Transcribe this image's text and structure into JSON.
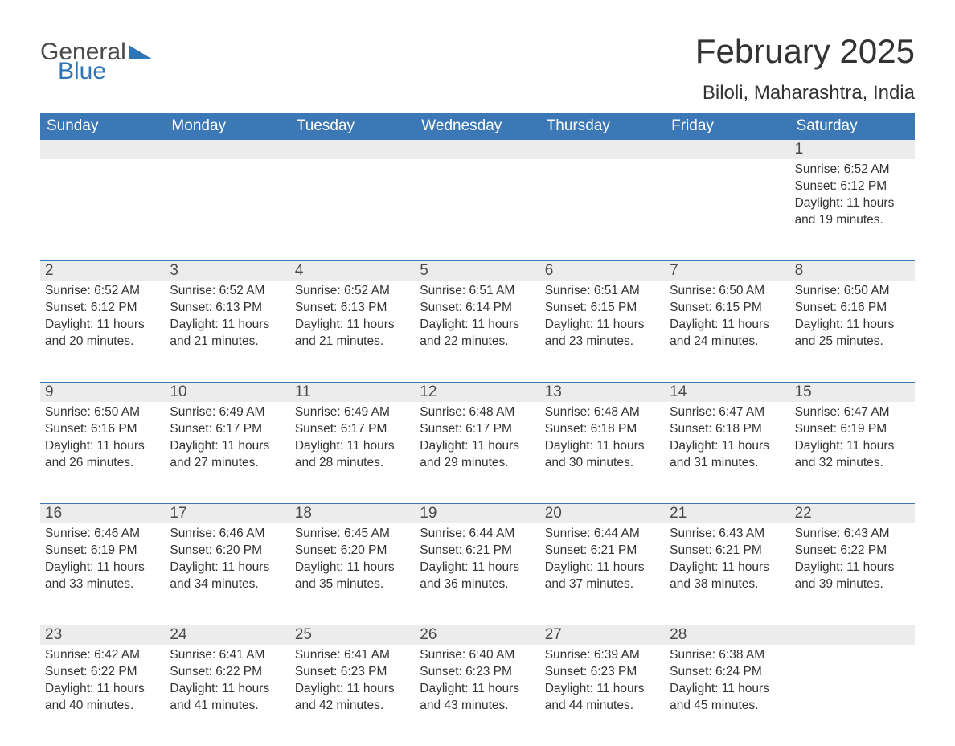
{
  "logo": {
    "text_general": "General",
    "text_blue": "Blue",
    "colors": {
      "general": "#4a4a4a",
      "blue": "#2e75b6"
    }
  },
  "header": {
    "month_title": "February 2025",
    "location": "Biloli, Maharashtra, India"
  },
  "style": {
    "header_row_bg": "#3b78b5",
    "header_row_text": "#ffffff",
    "daynum_bg": "#ececec",
    "week_border": "#3b78b5",
    "body_text": "#333333",
    "page_bg": "#ffffff",
    "weekday_fontsize": 19,
    "daynum_fontsize": 19,
    "body_fontsize": 15.5,
    "title_fontsize": 42,
    "location_fontsize": 24
  },
  "calendar": {
    "type": "table",
    "weekdays": [
      "Sunday",
      "Monday",
      "Tuesday",
      "Wednesday",
      "Thursday",
      "Friday",
      "Saturday"
    ],
    "weeks": [
      [
        null,
        null,
        null,
        null,
        null,
        null,
        {
          "n": "1",
          "sunrise": "Sunrise: 6:52 AM",
          "sunset": "Sunset: 6:12 PM",
          "daylight": "Daylight: 11 hours and 19 minutes."
        }
      ],
      [
        {
          "n": "2",
          "sunrise": "Sunrise: 6:52 AM",
          "sunset": "Sunset: 6:12 PM",
          "daylight": "Daylight: 11 hours and 20 minutes."
        },
        {
          "n": "3",
          "sunrise": "Sunrise: 6:52 AM",
          "sunset": "Sunset: 6:13 PM",
          "daylight": "Daylight: 11 hours and 21 minutes."
        },
        {
          "n": "4",
          "sunrise": "Sunrise: 6:52 AM",
          "sunset": "Sunset: 6:13 PM",
          "daylight": "Daylight: 11 hours and 21 minutes."
        },
        {
          "n": "5",
          "sunrise": "Sunrise: 6:51 AM",
          "sunset": "Sunset: 6:14 PM",
          "daylight": "Daylight: 11 hours and 22 minutes."
        },
        {
          "n": "6",
          "sunrise": "Sunrise: 6:51 AM",
          "sunset": "Sunset: 6:15 PM",
          "daylight": "Daylight: 11 hours and 23 minutes."
        },
        {
          "n": "7",
          "sunrise": "Sunrise: 6:50 AM",
          "sunset": "Sunset: 6:15 PM",
          "daylight": "Daylight: 11 hours and 24 minutes."
        },
        {
          "n": "8",
          "sunrise": "Sunrise: 6:50 AM",
          "sunset": "Sunset: 6:16 PM",
          "daylight": "Daylight: 11 hours and 25 minutes."
        }
      ],
      [
        {
          "n": "9",
          "sunrise": "Sunrise: 6:50 AM",
          "sunset": "Sunset: 6:16 PM",
          "daylight": "Daylight: 11 hours and 26 minutes."
        },
        {
          "n": "10",
          "sunrise": "Sunrise: 6:49 AM",
          "sunset": "Sunset: 6:17 PM",
          "daylight": "Daylight: 11 hours and 27 minutes."
        },
        {
          "n": "11",
          "sunrise": "Sunrise: 6:49 AM",
          "sunset": "Sunset: 6:17 PM",
          "daylight": "Daylight: 11 hours and 28 minutes."
        },
        {
          "n": "12",
          "sunrise": "Sunrise: 6:48 AM",
          "sunset": "Sunset: 6:17 PM",
          "daylight": "Daylight: 11 hours and 29 minutes."
        },
        {
          "n": "13",
          "sunrise": "Sunrise: 6:48 AM",
          "sunset": "Sunset: 6:18 PM",
          "daylight": "Daylight: 11 hours and 30 minutes."
        },
        {
          "n": "14",
          "sunrise": "Sunrise: 6:47 AM",
          "sunset": "Sunset: 6:18 PM",
          "daylight": "Daylight: 11 hours and 31 minutes."
        },
        {
          "n": "15",
          "sunrise": "Sunrise: 6:47 AM",
          "sunset": "Sunset: 6:19 PM",
          "daylight": "Daylight: 11 hours and 32 minutes."
        }
      ],
      [
        {
          "n": "16",
          "sunrise": "Sunrise: 6:46 AM",
          "sunset": "Sunset: 6:19 PM",
          "daylight": "Daylight: 11 hours and 33 minutes."
        },
        {
          "n": "17",
          "sunrise": "Sunrise: 6:46 AM",
          "sunset": "Sunset: 6:20 PM",
          "daylight": "Daylight: 11 hours and 34 minutes."
        },
        {
          "n": "18",
          "sunrise": "Sunrise: 6:45 AM",
          "sunset": "Sunset: 6:20 PM",
          "daylight": "Daylight: 11 hours and 35 minutes."
        },
        {
          "n": "19",
          "sunrise": "Sunrise: 6:44 AM",
          "sunset": "Sunset: 6:21 PM",
          "daylight": "Daylight: 11 hours and 36 minutes."
        },
        {
          "n": "20",
          "sunrise": "Sunrise: 6:44 AM",
          "sunset": "Sunset: 6:21 PM",
          "daylight": "Daylight: 11 hours and 37 minutes."
        },
        {
          "n": "21",
          "sunrise": "Sunrise: 6:43 AM",
          "sunset": "Sunset: 6:21 PM",
          "daylight": "Daylight: 11 hours and 38 minutes."
        },
        {
          "n": "22",
          "sunrise": "Sunrise: 6:43 AM",
          "sunset": "Sunset: 6:22 PM",
          "daylight": "Daylight: 11 hours and 39 minutes."
        }
      ],
      [
        {
          "n": "23",
          "sunrise": "Sunrise: 6:42 AM",
          "sunset": "Sunset: 6:22 PM",
          "daylight": "Daylight: 11 hours and 40 minutes."
        },
        {
          "n": "24",
          "sunrise": "Sunrise: 6:41 AM",
          "sunset": "Sunset: 6:22 PM",
          "daylight": "Daylight: 11 hours and 41 minutes."
        },
        {
          "n": "25",
          "sunrise": "Sunrise: 6:41 AM",
          "sunset": "Sunset: 6:23 PM",
          "daylight": "Daylight: 11 hours and 42 minutes."
        },
        {
          "n": "26",
          "sunrise": "Sunrise: 6:40 AM",
          "sunset": "Sunset: 6:23 PM",
          "daylight": "Daylight: 11 hours and 43 minutes."
        },
        {
          "n": "27",
          "sunrise": "Sunrise: 6:39 AM",
          "sunset": "Sunset: 6:23 PM",
          "daylight": "Daylight: 11 hours and 44 minutes."
        },
        {
          "n": "28",
          "sunrise": "Sunrise: 6:38 AM",
          "sunset": "Sunset: 6:24 PM",
          "daylight": "Daylight: 11 hours and 45 minutes."
        },
        null
      ]
    ]
  }
}
